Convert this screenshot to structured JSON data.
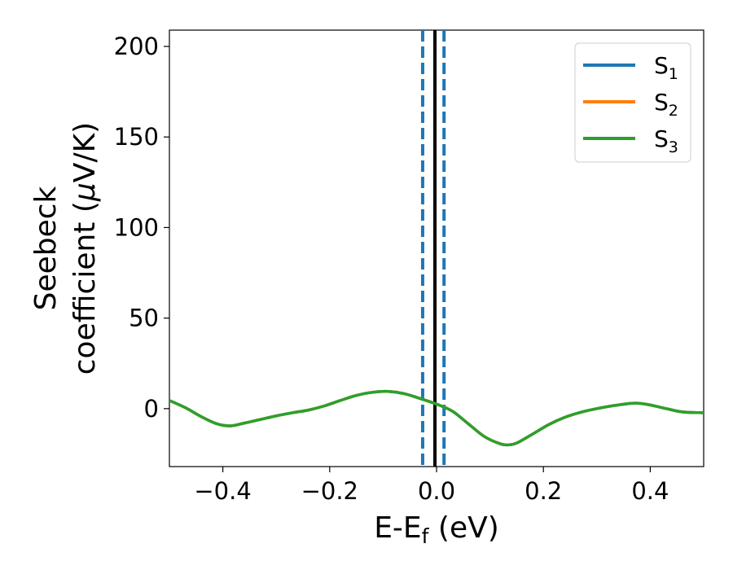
{
  "chart_data": {
    "type": "line",
    "xlabel": {
      "main": "E-E",
      "sub": "f",
      "tail": " (eV)"
    },
    "ylabel": {
      "line1": "Seebeck",
      "line2_pre": "coefficient  (",
      "mu": "μ",
      "line2_post": "V/K)"
    },
    "xlim": [
      -0.5,
      0.5
    ],
    "ylim": [
      -32,
      209
    ],
    "xticks": [
      -0.4,
      -0.2,
      0.0,
      0.2,
      0.4
    ],
    "xtick_labels": [
      "−0.4",
      "−0.2",
      "0.0",
      "0.2",
      "0.4"
    ],
    "yticks": [
      0,
      50,
      100,
      150,
      200
    ],
    "ytick_labels": [
      "0",
      "50",
      "100",
      "150",
      "200"
    ],
    "legend_position": "top-right",
    "series": [
      {
        "name": "S",
        "sub": "1",
        "color": "#1f77b4"
      },
      {
        "name": "S",
        "sub": "2",
        "color": "#ff7f0e"
      },
      {
        "name": "S",
        "sub": "3",
        "color": "#2ca02c"
      }
    ],
    "curve": {
      "x": [
        -0.5,
        -0.47,
        -0.44,
        -0.41,
        -0.385,
        -0.36,
        -0.33,
        -0.3,
        -0.27,
        -0.24,
        -0.21,
        -0.18,
        -0.15,
        -0.12,
        -0.09,
        -0.06,
        -0.03,
        0.0,
        0.03,
        0.06,
        0.09,
        0.12,
        0.135,
        0.15,
        0.18,
        0.21,
        0.24,
        0.27,
        0.3,
        0.33,
        0.36,
        0.375,
        0.4,
        0.43,
        0.46,
        0.5
      ],
      "y": [
        4.5,
        0.5,
        -4.5,
        -8.5,
        -9.5,
        -8.0,
        -6.0,
        -4.0,
        -2.3,
        -0.8,
        1.5,
        4.5,
        7.3,
        9.0,
        9.5,
        8.2,
        5.5,
        2.5,
        -1.5,
        -8.5,
        -15.5,
        -19.5,
        -20.0,
        -19.0,
        -14.0,
        -8.8,
        -4.8,
        -2.0,
        0.0,
        1.6,
        2.8,
        3.0,
        2.0,
        0.0,
        -1.8,
        -2.3
      ]
    },
    "vlines": [
      {
        "x": -0.026,
        "style": "dashed",
        "color": "#1f77b4"
      },
      {
        "x": 0.014,
        "style": "dashed",
        "color": "#1f77b4"
      },
      {
        "x": -0.003,
        "style": "solid",
        "color": "#000000"
      }
    ]
  }
}
